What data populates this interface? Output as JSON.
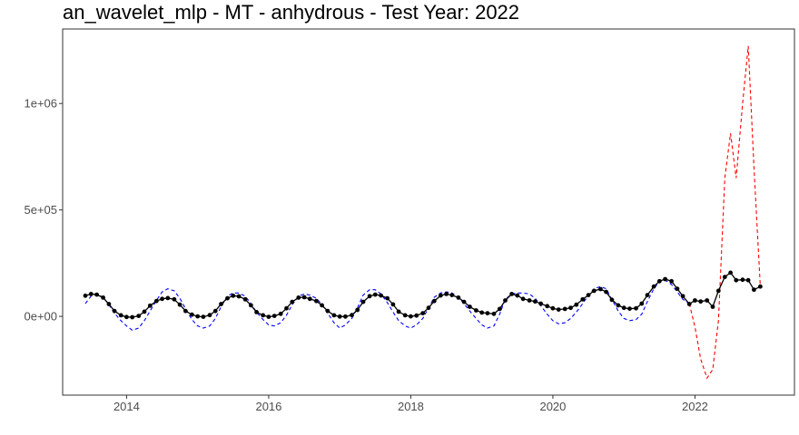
{
  "chart_data": {
    "type": "line",
    "title": "an_wavelet_mlp - MT - anhydrous - Test Year: 2022",
    "xlabel": "",
    "ylabel": "",
    "xlim": [
      2013.1,
      2023.4
    ],
    "ylim": [
      -370000,
      1350000
    ],
    "x_ticks": [
      2014,
      2016,
      2018,
      2020,
      2022
    ],
    "x_tick_labels": [
      "2014",
      "2016",
      "2018",
      "2020",
      "2022"
    ],
    "y_ticks": [
      0,
      500000,
      1000000
    ],
    "y_tick_labels": [
      "0e+00",
      "5e+05",
      "1e+06"
    ],
    "grid": false,
    "legend": "none",
    "series": [
      {
        "role": "actual",
        "style": "solid",
        "color": "#000000",
        "markers": true,
        "x": [
          2013.42,
          2013.5,
          2013.58,
          2013.67,
          2013.75,
          2013.83,
          2013.92,
          2014.0,
          2014.08,
          2014.17,
          2014.25,
          2014.33,
          2014.42,
          2014.5,
          2014.58,
          2014.67,
          2014.75,
          2014.83,
          2014.92,
          2015.0,
          2015.08,
          2015.17,
          2015.25,
          2015.33,
          2015.42,
          2015.5,
          2015.58,
          2015.67,
          2015.75,
          2015.83,
          2015.92,
          2016.0,
          2016.08,
          2016.17,
          2016.25,
          2016.33,
          2016.42,
          2016.5,
          2016.58,
          2016.67,
          2016.75,
          2016.83,
          2016.92,
          2017.0,
          2017.08,
          2017.17,
          2017.25,
          2017.33,
          2017.42,
          2017.5,
          2017.58,
          2017.67,
          2017.75,
          2017.83,
          2017.92,
          2018.0,
          2018.08,
          2018.17,
          2018.25,
          2018.33,
          2018.42,
          2018.5,
          2018.58,
          2018.67,
          2018.75,
          2018.83,
          2018.92,
          2019.0,
          2019.08,
          2019.17,
          2019.25,
          2019.33,
          2019.42,
          2019.5,
          2019.58,
          2019.67,
          2019.75,
          2019.83,
          2019.92,
          2020.0,
          2020.08,
          2020.17,
          2020.25,
          2020.33,
          2020.42,
          2020.5,
          2020.58,
          2020.67,
          2020.75,
          2020.83,
          2020.92,
          2021.0,
          2021.08,
          2021.17,
          2021.25,
          2021.33,
          2021.42,
          2021.5,
          2021.58,
          2021.67,
          2021.75,
          2021.83,
          2021.92,
          2022.0,
          2022.08,
          2022.17,
          2022.25,
          2022.33,
          2022.42,
          2022.5,
          2022.58,
          2022.67,
          2022.75,
          2022.83,
          2022.92
        ],
        "y": [
          97000,
          105000,
          102000,
          88000,
          58000,
          25000,
          5000,
          -3000,
          -4000,
          2000,
          22000,
          50000,
          72000,
          82000,
          86000,
          80000,
          55000,
          25000,
          8000,
          0,
          -2000,
          6000,
          25000,
          58000,
          85000,
          97000,
          94000,
          80000,
          52000,
          20000,
          5000,
          -2000,
          2000,
          12000,
          38000,
          68000,
          88000,
          90000,
          82000,
          72000,
          52000,
          25000,
          5000,
          -1000,
          -1000,
          6000,
          30000,
          68000,
          95000,
          102000,
          98000,
          85000,
          56000,
          22000,
          5000,
          0,
          4000,
          15000,
          40000,
          72000,
          98000,
          105000,
          100000,
          88000,
          68000,
          45000,
          28000,
          18000,
          15000,
          12000,
          35000,
          75000,
          105000,
          98000,
          82000,
          75000,
          70000,
          60000,
          48000,
          38000,
          32000,
          35000,
          40000,
          55000,
          80000,
          100000,
          120000,
          128000,
          115000,
          78000,
          52000,
          40000,
          36000,
          38000,
          60000,
          100000,
          140000,
          165000,
          175000,
          165000,
          130000,
          95000,
          58000,
          75000,
          70000,
          75000,
          45000,
          120000,
          185000,
          205000,
          170000,
          172000,
          170000,
          125000,
          140000
        ]
      },
      {
        "role": "fitted",
        "style": "dashed",
        "color": "#0000ff",
        "markers": false,
        "x": [
          2013.42,
          2013.5,
          2013.58,
          2013.67,
          2013.75,
          2013.83,
          2013.92,
          2014.0,
          2014.08,
          2014.17,
          2014.25,
          2014.33,
          2014.42,
          2014.5,
          2014.58,
          2014.67,
          2014.75,
          2014.83,
          2014.92,
          2015.0,
          2015.08,
          2015.17,
          2015.25,
          2015.33,
          2015.42,
          2015.5,
          2015.58,
          2015.67,
          2015.75,
          2015.83,
          2015.92,
          2016.0,
          2016.08,
          2016.17,
          2016.25,
          2016.33,
          2016.42,
          2016.5,
          2016.58,
          2016.67,
          2016.75,
          2016.83,
          2016.92,
          2017.0,
          2017.08,
          2017.17,
          2017.25,
          2017.33,
          2017.42,
          2017.5,
          2017.58,
          2017.67,
          2017.75,
          2017.83,
          2017.92,
          2018.0,
          2018.08,
          2018.17,
          2018.25,
          2018.33,
          2018.42,
          2018.5,
          2018.58,
          2018.67,
          2018.75,
          2018.83,
          2018.92,
          2019.0,
          2019.08,
          2019.17,
          2019.25,
          2019.33,
          2019.42,
          2019.5,
          2019.58,
          2019.67,
          2019.75,
          2019.83,
          2019.92,
          2020.0,
          2020.08,
          2020.17,
          2020.25,
          2020.33,
          2020.42,
          2020.5,
          2020.58,
          2020.67,
          2020.75,
          2020.83,
          2020.92,
          2021.0,
          2021.08,
          2021.17,
          2021.25,
          2021.33,
          2021.42,
          2021.5,
          2021.58,
          2021.67,
          2021.75,
          2021.83,
          2021.92
        ],
        "y": [
          60000,
          95000,
          105000,
          90000,
          55000,
          15000,
          -20000,
          -45000,
          -65000,
          -55000,
          -20000,
          25000,
          75000,
          115000,
          130000,
          120000,
          85000,
          35000,
          -15000,
          -45000,
          -55000,
          -45000,
          -10000,
          45000,
          95000,
          110000,
          110000,
          95000,
          60000,
          20000,
          -15000,
          -40000,
          -45000,
          -30000,
          5000,
          55000,
          95000,
          105000,
          100000,
          85000,
          55000,
          15000,
          -30000,
          -55000,
          -40000,
          -10000,
          40000,
          100000,
          125000,
          125000,
          105000,
          65000,
          20000,
          -20000,
          -45000,
          -55000,
          -40000,
          -10000,
          40000,
          90000,
          110000,
          115000,
          110000,
          90000,
          60000,
          25000,
          -10000,
          -40000,
          -55000,
          -45000,
          10000,
          80000,
          105000,
          110000,
          110000,
          105000,
          85000,
          50000,
          10000,
          -20000,
          -35000,
          -30000,
          -10000,
          20000,
          60000,
          100000,
          130000,
          140000,
          130000,
          80000,
          25000,
          -10000,
          -20000,
          -15000,
          10000,
          70000,
          130000,
          165000,
          170000,
          150000,
          115000,
          80000,
          60000
        ]
      },
      {
        "role": "forecast",
        "style": "dashed",
        "color": "#ff0000",
        "markers": false,
        "x": [
          2021.92,
          2022.0,
          2022.08,
          2022.17,
          2022.25,
          2022.33,
          2022.42,
          2022.5,
          2022.58,
          2022.67,
          2022.75,
          2022.83,
          2022.92
        ],
        "y": [
          60000,
          -50000,
          -200000,
          -290000,
          -250000,
          -20000,
          650000,
          860000,
          650000,
          1000000,
          1270000,
          700000,
          140000
        ]
      }
    ]
  }
}
